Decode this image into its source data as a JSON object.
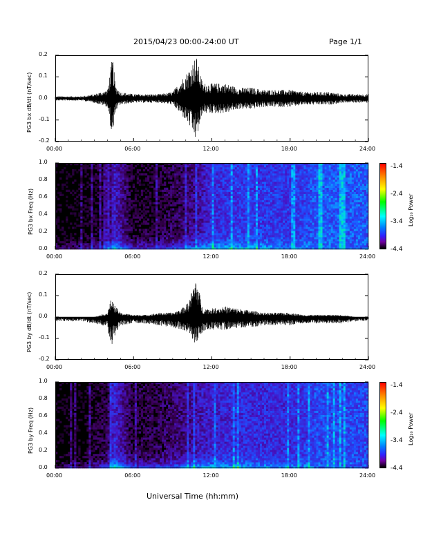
{
  "header": {
    "title": "2015/04/23  00:00-24:00 UT",
    "page": "Page 1/1"
  },
  "xlabel": "Universal Time (hh:mm)",
  "x_ticks": [
    "00:00",
    "06:00",
    "12:00",
    "18:00",
    "24:00"
  ],
  "colorbar": {
    "label": "Log₁₀ Power",
    "ticks": [
      "-1.4",
      "-2.4",
      "-3.4",
      "-4.4"
    ],
    "colors": [
      "#ff0000",
      "#ffff00",
      "#00ff00",
      "#00ffff",
      "#0080ff",
      "#7000a0",
      "#000000"
    ]
  },
  "panels": {
    "p1": {
      "ylabel": "PG3 bx dB/dt (nT/sec)",
      "yticks": [
        "0.2",
        "0.1",
        "0.0",
        "-0.1",
        "-0.2"
      ]
    },
    "p2": {
      "ylabel": "PG3 bx Freq (Hz)",
      "yticks": [
        "1.0",
        "0.8",
        "0.6",
        "0.4",
        "0.2",
        "0.0"
      ]
    },
    "p3": {
      "ylabel": "PG3 by dB/dt (nT/sec)",
      "yticks": [
        "0.2",
        "0.1",
        "0.0",
        "-0.1",
        "-0.2"
      ]
    },
    "p4": {
      "ylabel": "PG3 by Freq (Hz)",
      "yticks": [
        "1.0",
        "0.8",
        "0.6",
        "0.4",
        "0.2",
        "0.0"
      ]
    }
  },
  "chart_data": [
    {
      "type": "line",
      "ylabel": "PG3 bx dB/dt (nT/sec)",
      "xlabel": "Universal Time (hh:mm)",
      "xlim": [
        0,
        24
      ],
      "ylim": [
        -0.2,
        0.2
      ],
      "series": [
        {
          "x": [
            0,
            1,
            2,
            3,
            4,
            4.4,
            4.6,
            5,
            6,
            7,
            8,
            9,
            9.7,
            10.2,
            10.8,
            11.3,
            12,
            13,
            14,
            15,
            16,
            17,
            18,
            19,
            20,
            21,
            22,
            23,
            24
          ],
          "y": [
            0.01,
            0.01,
            0.01,
            0.02,
            0.04,
            0.2,
            0.06,
            0.03,
            0.02,
            0.02,
            0.02,
            0.03,
            0.09,
            0.13,
            0.2,
            0.07,
            0.07,
            0.07,
            0.05,
            0.05,
            0.04,
            0.04,
            0.04,
            0.03,
            0.03,
            0.03,
            0.02,
            0.02,
            0.02
          ],
          "y_min": [
            -0.01,
            -0.01,
            -0.01,
            -0.02,
            -0.04,
            -0.2,
            -0.06,
            -0.03,
            -0.02,
            -0.02,
            -0.02,
            -0.03,
            -0.08,
            -0.12,
            -0.2,
            -0.07,
            -0.07,
            -0.07,
            -0.05,
            -0.05,
            -0.04,
            -0.04,
            -0.04,
            -0.03,
            -0.03,
            -0.03,
            -0.02,
            -0.02,
            -0.02
          ]
        }
      ]
    },
    {
      "type": "heatmap",
      "ylabel": "PG3 bx Freq (Hz)",
      "xlim": [
        0,
        24
      ],
      "ylim": [
        0,
        1.0
      ],
      "colorbar_label": "Log₁₀ Power",
      "colorbar_range": [
        -4.4,
        -1.4
      ],
      "time_hours": [
        0,
        2,
        4,
        4.5,
        6,
        8,
        10,
        11,
        12,
        14,
        16,
        18,
        19.5,
        20,
        22,
        24
      ],
      "background_level": [
        -4.4,
        -4.4,
        -4.2,
        -3.6,
        -4.3,
        -4.2,
        -4.0,
        -3.8,
        -3.5,
        -3.4,
        -3.4,
        -3.4,
        -3.3,
        -3.2,
        -3.2,
        -3.2
      ],
      "low_freq_level": [
        -3.9,
        -3.8,
        -3.4,
        -2.6,
        -3.4,
        -3.3,
        -3.0,
        -2.8,
        -2.7,
        -2.6,
        -2.8,
        -2.9,
        -2.9,
        -3.1,
        -3.1,
        -3.2
      ]
    },
    {
      "type": "line",
      "ylabel": "PG3 by dB/dt (nT/sec)",
      "xlabel": "Universal Time (hh:mm)",
      "xlim": [
        0,
        24
      ],
      "ylim": [
        -0.2,
        0.2
      ],
      "series": [
        {
          "x": [
            0,
            1,
            2,
            3,
            4,
            4.3,
            4.6,
            5,
            6,
            7,
            8,
            9,
            9.7,
            10.2,
            10.8,
            11.3,
            12,
            13,
            14,
            15,
            16,
            17,
            18,
            19,
            20,
            21,
            22,
            23,
            24
          ],
          "y": [
            0.0,
            0.0,
            0.0,
            0.0,
            0.02,
            0.09,
            0.05,
            0.02,
            0.01,
            0.01,
            0.02,
            0.02,
            0.04,
            0.07,
            0.19,
            0.04,
            0.04,
            0.05,
            0.04,
            0.03,
            0.02,
            0.02,
            0.02,
            0.01,
            0.01,
            0.01,
            0.01,
            0.0,
            0.0
          ],
          "y_min": [
            -0.02,
            -0.02,
            -0.02,
            -0.03,
            -0.05,
            -0.14,
            -0.08,
            -0.04,
            -0.03,
            -0.03,
            -0.04,
            -0.05,
            -0.06,
            -0.08,
            -0.13,
            -0.07,
            -0.06,
            -0.06,
            -0.05,
            -0.05,
            -0.04,
            -0.04,
            -0.04,
            -0.03,
            -0.03,
            -0.03,
            -0.03,
            -0.02,
            -0.02
          ]
        }
      ]
    },
    {
      "type": "heatmap",
      "ylabel": "PG3 by Freq (Hz)",
      "xlim": [
        0,
        24
      ],
      "ylim": [
        0,
        1.0
      ],
      "colorbar_label": "Log₁₀ Power",
      "colorbar_range": [
        -4.4,
        -1.4
      ],
      "time_hours": [
        0,
        2,
        4,
        4.5,
        6,
        8,
        10,
        11,
        12,
        14,
        16,
        18,
        19.5,
        20,
        22,
        24
      ],
      "background_level": [
        -4.4,
        -4.4,
        -4.1,
        -3.5,
        -4.2,
        -4.1,
        -3.9,
        -3.7,
        -3.6,
        -3.5,
        -3.5,
        -3.5,
        -3.4,
        -3.3,
        -3.3,
        -3.3
      ],
      "low_freq_level": [
        -3.9,
        -3.8,
        -3.3,
        -2.5,
        -3.3,
        -3.2,
        -2.9,
        -2.7,
        -2.7,
        -2.7,
        -2.8,
        -2.9,
        -2.9,
        -3.1,
        -3.1,
        -3.2
      ]
    }
  ]
}
